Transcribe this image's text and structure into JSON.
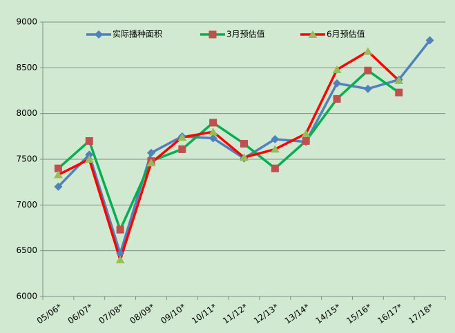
{
  "chart_data": {
    "type": "line",
    "categories": [
      "05/06*",
      "06/07*",
      "07/08*",
      "08/09*",
      "09/10*",
      "10/11*",
      "11/12*",
      "12/13*",
      "13/14*",
      "14/15*",
      "15/16*",
      "16/17*",
      "17/18*"
    ],
    "series": [
      {
        "name": "实际播种面积",
        "color": "#4f81bd",
        "marker": "diamond",
        "marker_color": "#4f81bd",
        "values": [
          7200,
          7550,
          6470,
          7570,
          7750,
          7730,
          7510,
          7720,
          7690,
          8330,
          8270,
          8370,
          8800
        ]
      },
      {
        "name": "3月预估值",
        "color": "#00b050",
        "marker": "square",
        "marker_color": "#c0504d",
        "values": [
          7400,
          7700,
          6730,
          7480,
          7610,
          7900,
          7670,
          7400,
          7700,
          8160,
          8470,
          8230,
          null
        ]
      },
      {
        "name": "6月预估值",
        "color": "#ff0000",
        "marker": "triangle",
        "marker_color": "#9bbb59",
        "values": [
          7330,
          7500,
          6400,
          7460,
          7740,
          7800,
          7520,
          7610,
          7780,
          8480,
          8680,
          8360,
          null
        ]
      }
    ],
    "ylim": [
      6000,
      9000
    ],
    "yticks": [
      6000,
      6500,
      7000,
      7500,
      8000,
      8500,
      9000
    ],
    "grid": true,
    "legend": "top"
  }
}
